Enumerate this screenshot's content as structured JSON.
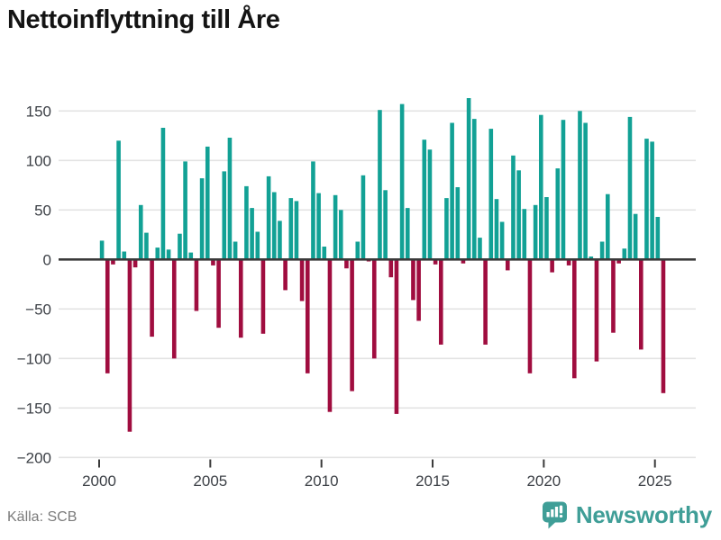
{
  "title": "Nettoinflyttning till Åre",
  "source": {
    "label": "Källa: SCB"
  },
  "branding": {
    "name": "Newsworthy",
    "color": "#3f9e97"
  },
  "colors": {
    "positive_bar": "#12a195",
    "negative_bar": "#a00d3f",
    "grid": "#e3e3e3",
    "zero_axis": "#3a3a3a",
    "tick_mark": "#3a3a3a",
    "tick_label": "#3c4046",
    "title_text": "#141414",
    "source_text": "#7b7b7b",
    "background": "#ffffff"
  },
  "chart_data": {
    "type": "bar",
    "title": "Nettoinflyttning till Åre",
    "frequency": "quarterly",
    "start": "2000-Q1",
    "end": "2025-Q2",
    "xlabel": "",
    "ylabel": "",
    "x_ticks": [
      2000,
      2005,
      2010,
      2015,
      2020,
      2025
    ],
    "y_ticks": [
      150,
      100,
      50,
      0,
      -50,
      -100,
      -150,
      -200
    ],
    "ylim": [
      -202,
      185
    ],
    "grid": true,
    "legend": false,
    "values": [
      19,
      -115,
      -5,
      120,
      8,
      -174,
      -8,
      55,
      27,
      -78,
      12,
      133,
      10,
      -100,
      26,
      99,
      7,
      -52,
      82,
      114,
      -6,
      -69,
      89,
      123,
      18,
      -79,
      74,
      52,
      28,
      -75,
      84,
      68,
      39,
      -31,
      62,
      59,
      -42,
      -115,
      99,
      67,
      13,
      -154,
      65,
      50,
      -9,
      -133,
      18,
      85,
      -2,
      -100,
      151,
      70,
      -18,
      -156,
      157,
      52,
      -41,
      -62,
      121,
      111,
      -5,
      -86,
      62,
      138,
      73,
      -4,
      163,
      142,
      22,
      -86,
      132,
      61,
      38,
      -11,
      105,
      90,
      51,
      -115,
      55,
      146,
      63,
      -13,
      92,
      141,
      -6,
      -120,
      150,
      138,
      3,
      -103,
      18,
      66,
      -74,
      -4,
      11,
      144,
      46,
      -91,
      122,
      119,
      43,
      -135
    ]
  }
}
